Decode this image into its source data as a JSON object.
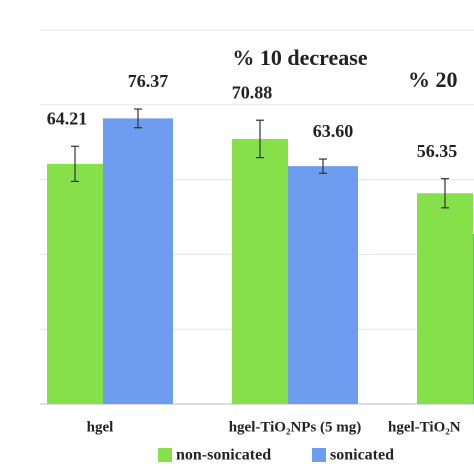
{
  "chart_data": {
    "type": "bar",
    "categories": [
      "hgel",
      "hgel-TiO₂NPs (5 mg)",
      "hgel-TiO₂N"
    ],
    "series": [
      {
        "name": "non-sonicated",
        "color": "#85e04a",
        "values": [
          64.21,
          70.88,
          56.35
        ],
        "value_labels": [
          "64.21",
          "70.88",
          "56.35"
        ],
        "errors": [
          4.7,
          5.0,
          3.9
        ]
      },
      {
        "name": "sonicated",
        "color": "#6e9df0",
        "values": [
          76.37,
          63.6,
          45.5
        ],
        "value_labels": [
          "76.37",
          "63.60",
          null
        ],
        "errors": [
          2.5,
          1.9,
          null
        ]
      }
    ],
    "annotations": [
      "% 10 decrease",
      "% 20"
    ],
    "ylim": [
      0,
      100
    ],
    "yticks": [
      0,
      20,
      40,
      60,
      80,
      100
    ],
    "grid": true,
    "legend": "bottom"
  }
}
